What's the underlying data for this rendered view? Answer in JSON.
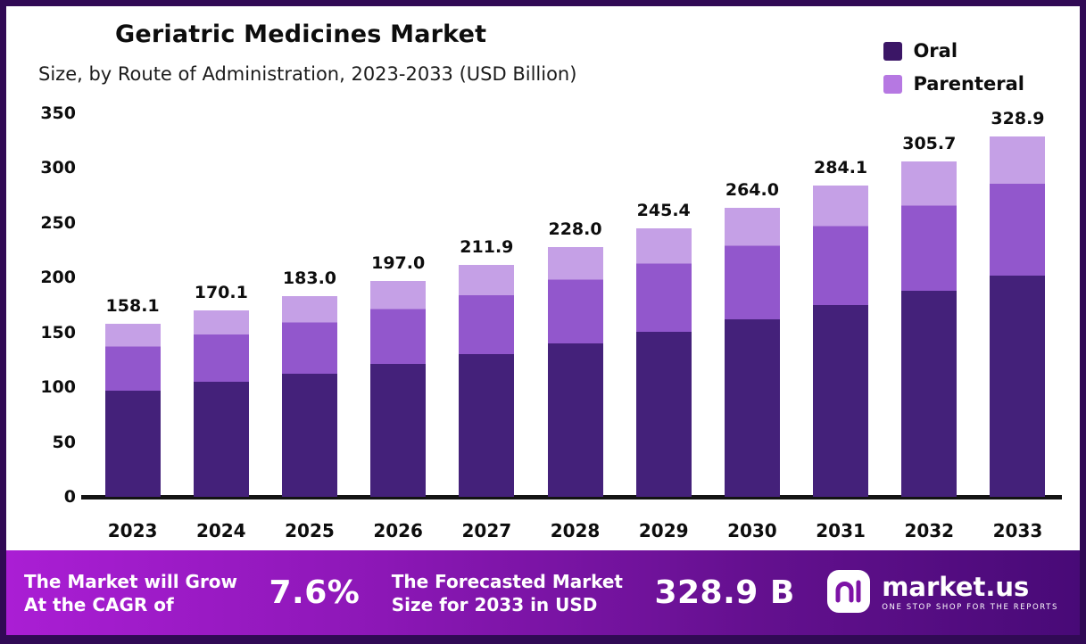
{
  "header": {
    "title": "Geriatric Medicines Market",
    "subtitle": "Size, by Route of Administration, 2023-2033 (USD Billion)"
  },
  "legend": {
    "items": [
      {
        "label": "Oral",
        "color": "#3b1666"
      },
      {
        "label": "Parenteral",
        "color": "#b678e2"
      }
    ]
  },
  "chart_data": {
    "type": "bar",
    "stacked": true,
    "title": "Geriatric Medicines Market",
    "subtitle": "Size, by Route of Administration, 2023-2033 (USD Billion)",
    "unit": "USD Billion",
    "categories": [
      "2023",
      "2024",
      "2025",
      "2026",
      "2027",
      "2028",
      "2029",
      "2030",
      "2031",
      "2032",
      "2033"
    ],
    "series": [
      {
        "name": "Oral",
        "color": "#44217a",
        "values": [
          97.0,
          105.0,
          112.5,
          121.0,
          130.3,
          140.2,
          150.9,
          162.3,
          174.7,
          188.0,
          202.2
        ]
      },
      {
        "name": "Parenteral",
        "color": "#9257cc",
        "color_top": "#c5a0e6",
        "values": [
          61.1,
          65.1,
          70.5,
          76.0,
          81.6,
          87.8,
          94.5,
          101.7,
          109.4,
          117.7,
          126.7
        ]
      }
    ],
    "totals": [
      158.1,
      170.1,
      183.0,
      197.0,
      211.9,
      228.0,
      245.4,
      264.0,
      284.1,
      305.7,
      328.9
    ],
    "total_labels": [
      "158.1",
      "170.1",
      "183.0",
      "197.0",
      "211.9",
      "228.0",
      "245.4",
      "264.0",
      "284.1",
      "305.7",
      "328.9"
    ],
    "yticks": [
      0,
      50,
      100,
      150,
      200,
      250,
      300,
      350
    ],
    "ylim": [
      0,
      350
    ],
    "grid": false,
    "legend_position": "top-right"
  },
  "footer": {
    "cagr_caption_line1": "The Market will Grow",
    "cagr_caption_line2": "At the CAGR of",
    "cagr_value": "7.6%",
    "forecast_caption_line1": "The Forecasted Market",
    "forecast_caption_line2": "Size for 2033 in USD",
    "forecast_value": "328.9 B",
    "brand_name": "market.us",
    "brand_tagline": "ONE STOP SHOP FOR THE REPORTS"
  }
}
